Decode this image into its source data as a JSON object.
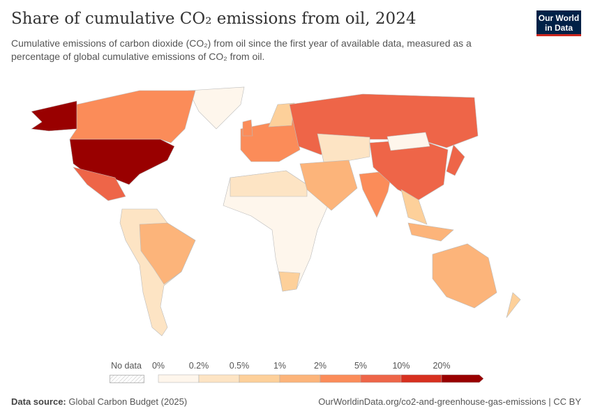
{
  "header": {
    "title": "Share of cumulative CO₂ emissions from oil, 2024",
    "subtitle": "Cumulative emissions of carbon dioxide (CO₂) from oil since the first year of available data, measured as a percentage of global cumulative emissions of CO₂ from oil.",
    "logo_text": "Our World in Data"
  },
  "legend": {
    "no_data_label": "No data",
    "bins": [
      "0%",
      "0.2%",
      "0.5%",
      "1%",
      "2%",
      "5%",
      "10%",
      "20%"
    ],
    "colors": [
      "#fef6ec",
      "#fde4c4",
      "#fdd09a",
      "#fcb47a",
      "#fb8c59",
      "#ee6548",
      "#d7301f",
      "#990000"
    ],
    "no_data_color": "#e8e8e8"
  },
  "map": {
    "countries": [
      {
        "name": "Greenland",
        "bin": 0
      },
      {
        "name": "Canada",
        "bin": 4
      },
      {
        "name": "Alaska (United States)",
        "bin": 7
      },
      {
        "name": "United States",
        "bin": 7
      },
      {
        "name": "Mexico",
        "bin": 5
      },
      {
        "name": "South America (others)",
        "bin": 1
      },
      {
        "name": "Brazil",
        "bin": 3
      },
      {
        "name": "Africa (sub-Saharan)",
        "bin": 0
      },
      {
        "name": "North Africa",
        "bin": 1
      },
      {
        "name": "South Africa",
        "bin": 2
      },
      {
        "name": "Europe",
        "bin": 4
      },
      {
        "name": "Scandinavia",
        "bin": 2
      },
      {
        "name": "United Kingdom",
        "bin": 4
      },
      {
        "name": "Russia",
        "bin": 5
      },
      {
        "name": "Kazakhstan",
        "bin": 1
      },
      {
        "name": "Middle East",
        "bin": 3
      },
      {
        "name": "India",
        "bin": 4
      },
      {
        "name": "China",
        "bin": 5
      },
      {
        "name": "Mongolia",
        "bin": 0
      },
      {
        "name": "Japan",
        "bin": 5
      },
      {
        "name": "Southeast Asia",
        "bin": 2
      },
      {
        "name": "Indonesia",
        "bin": 3
      },
      {
        "name": "Australia",
        "bin": 3
      },
      {
        "name": "New Zealand",
        "bin": 2
      }
    ]
  },
  "footer": {
    "source_label": "Data source:",
    "source": "Global Carbon Budget (2025)",
    "url": "OurWorldinData.org/co2-and-greenhouse-gas-emissions | CC BY"
  }
}
